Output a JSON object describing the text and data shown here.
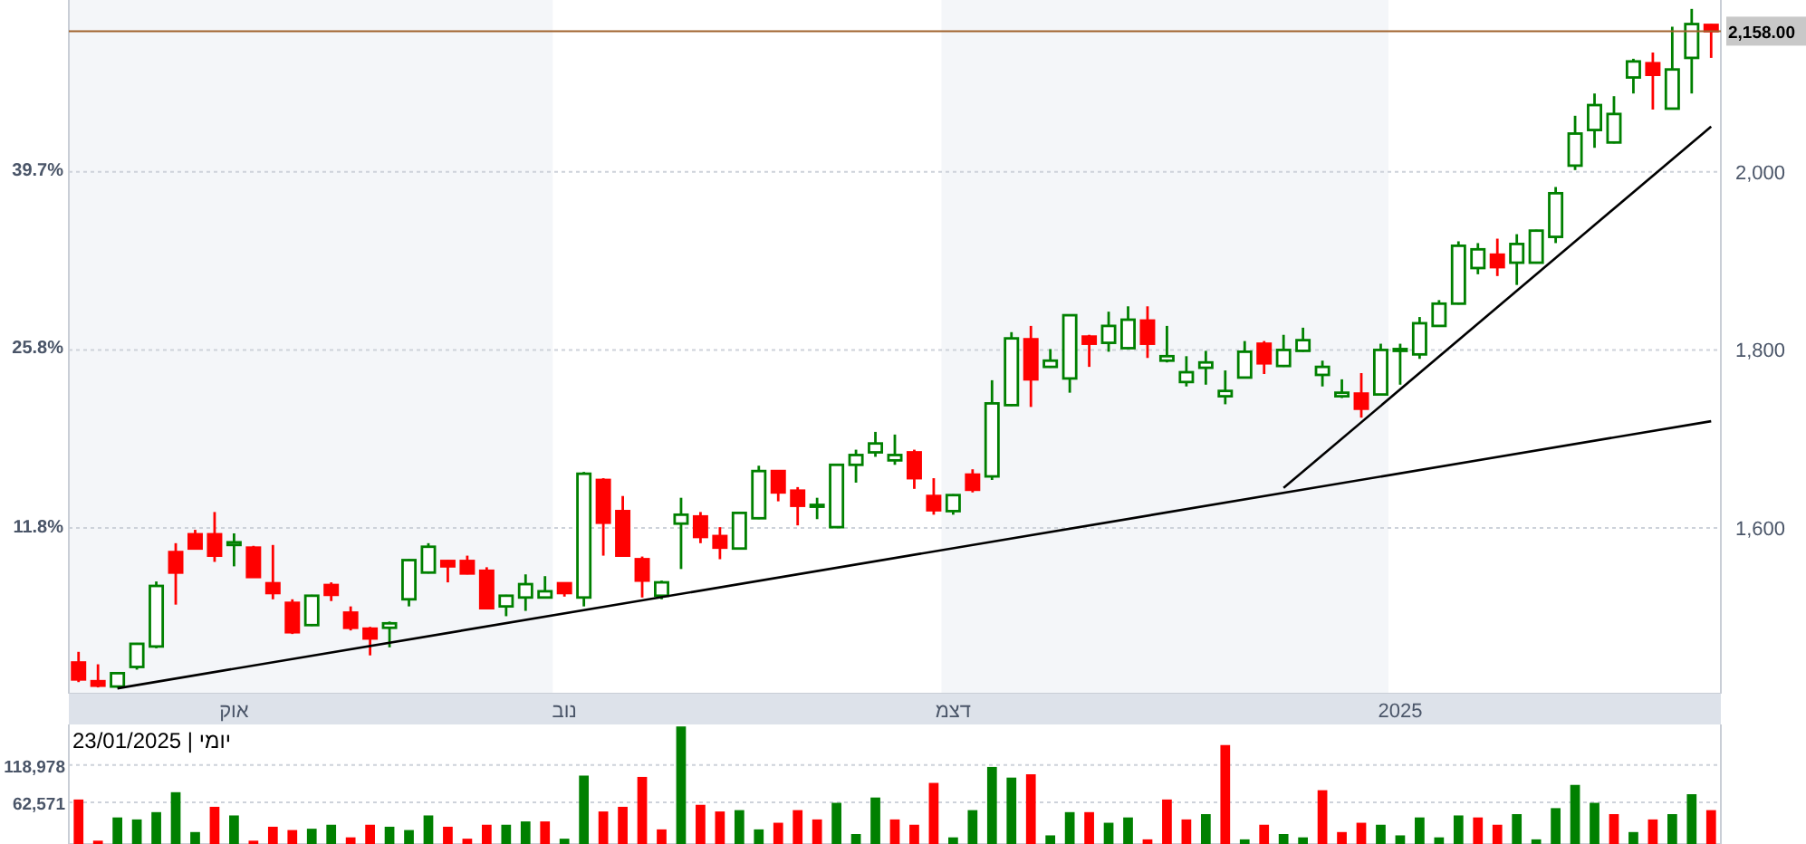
{
  "chart_data": [
    {
      "type": "candlestick",
      "categories": [
        null,
        null,
        null,
        null,
        null,
        null,
        null,
        null,
        "אוק",
        null,
        null,
        null,
        null,
        null,
        null,
        null,
        null,
        null,
        null,
        null,
        null,
        null,
        null,
        null,
        null,
        "נוב",
        null,
        null,
        null,
        null,
        null,
        null,
        null,
        null,
        null,
        null,
        null,
        null,
        null,
        null,
        null,
        null,
        null,
        null,
        null,
        "דצמ",
        null,
        null,
        null,
        null,
        null,
        null,
        null,
        null,
        null,
        null,
        null,
        null,
        null,
        null,
        null,
        null,
        null,
        null,
        null,
        null,
        null,
        null,
        "2025",
        null,
        null,
        null,
        null,
        null,
        null,
        null,
        null,
        null,
        null,
        null,
        null,
        null,
        null,
        null,
        null
      ],
      "ohlc": [
        [
          1449,
          1461,
          1427,
          1430
        ],
        [
          1428,
          1447,
          1421,
          1423
        ],
        [
          1422,
          1438,
          1421,
          1437
        ],
        [
          1444,
          1471,
          1441,
          1470
        ],
        [
          1467,
          1540,
          1465,
          1535
        ],
        [
          1573,
          1583,
          1514,
          1550
        ],
        [
          1593,
          1598,
          1576,
          1577
        ],
        [
          1593,
          1618,
          1562,
          1569
        ],
        [
          1581,
          1594,
          1557,
          1584
        ],
        [
          1578,
          1580,
          1545,
          1545
        ],
        [
          1538,
          1581,
          1520,
          1527
        ],
        [
          1516,
          1520,
          1481,
          1483
        ],
        [
          1491,
          1525,
          1490,
          1524
        ],
        [
          1536,
          1539,
          1518,
          1525
        ],
        [
          1505,
          1512,
          1485,
          1488
        ],
        [
          1487,
          1489,
          1457,
          1476
        ],
        [
          1488,
          1495,
          1466,
          1493
        ],
        [
          1520,
          1565,
          1512,
          1564
        ],
        [
          1550,
          1583,
          1549,
          1579
        ],
        [
          1563,
          1564,
          1539,
          1557
        ],
        [
          1563,
          1569,
          1548,
          1549
        ],
        [
          1552,
          1556,
          1510,
          1510
        ],
        [
          1512,
          1525,
          1501,
          1524
        ],
        [
          1522,
          1548,
          1507,
          1537
        ],
        [
          1522,
          1546,
          1521,
          1529
        ],
        [
          1538,
          1539,
          1523,
          1527
        ],
        [
          1522,
          1663,
          1512,
          1661
        ],
        [
          1654,
          1656,
          1569,
          1606
        ],
        [
          1619,
          1636,
          1569,
          1569
        ],
        [
          1565,
          1568,
          1522,
          1541
        ],
        [
          1524,
          1541,
          1520,
          1539
        ],
        [
          1605,
          1634,
          1554,
          1615
        ],
        [
          1613,
          1618,
          1583,
          1590
        ],
        [
          1591,
          1601,
          1565,
          1578
        ],
        [
          1577,
          1617,
          1576,
          1617
        ],
        [
          1611,
          1670,
          1610,
          1664
        ],
        [
          1664,
          1665,
          1630,
          1640
        ],
        [
          1642,
          1646,
          1603,
          1625
        ],
        [
          1624,
          1634,
          1610,
          1626
        ],
        [
          1601,
          1672,
          1600,
          1671
        ],
        [
          1671,
          1688,
          1651,
          1682
        ],
        [
          1685,
          1708,
          1680,
          1695
        ],
        [
          1676,
          1705,
          1671,
          1682
        ],
        [
          1685,
          1688,
          1644,
          1656
        ],
        [
          1636,
          1656,
          1615,
          1620
        ],
        [
          1619,
          1638,
          1615,
          1637
        ],
        [
          1660,
          1666,
          1640,
          1643
        ],
        [
          1658,
          1766,
          1654,
          1740
        ],
        [
          1738,
          1820,
          1737,
          1813
        ],
        [
          1812,
          1827,
          1736,
          1767
        ],
        [
          1781,
          1801,
          1780,
          1788
        ],
        [
          1768,
          1840,
          1752,
          1839
        ],
        [
          1815,
          1817,
          1781,
          1807
        ],
        [
          1808,
          1843,
          1798,
          1827
        ],
        [
          1802,
          1849,
          1801,
          1834
        ],
        [
          1833,
          1849,
          1791,
          1807
        ],
        [
          1788,
          1827,
          1786,
          1793
        ],
        [
          1764,
          1793,
          1759,
          1775
        ],
        [
          1780,
          1799,
          1761,
          1786
        ],
        [
          1748,
          1777,
          1739,
          1754
        ],
        [
          1769,
          1810,
          1768,
          1798
        ],
        [
          1807,
          1810,
          1773,
          1785
        ],
        [
          1782,
          1817,
          1781,
          1800
        ],
        [
          1799,
          1825,
          1798,
          1811
        ],
        [
          1772,
          1788,
          1759,
          1781
        ],
        [
          1748,
          1767,
          1746,
          1752
        ],
        [
          1751,
          1774,
          1724,
          1734
        ],
        [
          1750,
          1807,
          1749,
          1800
        ],
        [
          1799,
          1807,
          1761,
          1801
        ],
        [
          1795,
          1837,
          1790,
          1830
        ],
        [
          1827,
          1856,
          1826,
          1852
        ],
        [
          1852,
          1922,
          1851,
          1917
        ],
        [
          1892,
          1920,
          1885,
          1913
        ],
        [
          1907,
          1925,
          1883,
          1893
        ],
        [
          1898,
          1930,
          1873,
          1919
        ],
        [
          1898,
          1935,
          1897,
          1934
        ],
        [
          1927,
          1983,
          1920,
          1976
        ],
        [
          2007,
          2063,
          2002,
          2043
        ],
        [
          2047,
          2088,
          2027,
          2075
        ],
        [
          2033,
          2085,
          2032,
          2065
        ],
        [
          2106,
          2127,
          2088,
          2124
        ],
        [
          2122,
          2134,
          2070,
          2109
        ],
        [
          2071,
          2163,
          2070,
          2115
        ],
        [
          2128,
          2183,
          2088,
          2166
        ],
        [
          2165,
          2166,
          2128,
          2158
        ]
      ],
      "colors": [
        "#ff0000",
        "#ff0000",
        "#008000",
        "#008000",
        "#008000",
        "#ff0000",
        "#ff0000",
        "#ff0000",
        "#008000",
        "#ff0000",
        "#ff0000",
        "#ff0000",
        "#008000",
        "#ff0000",
        "#ff0000",
        "#ff0000",
        "#008000",
        "#008000",
        "#008000",
        "#ff0000",
        "#ff0000",
        "#ff0000",
        "#008000",
        "#008000",
        "#008000",
        "#ff0000",
        "#008000",
        "#ff0000",
        "#ff0000",
        "#ff0000",
        "#008000",
        "#008000",
        "#ff0000",
        "#ff0000",
        "#008000",
        "#008000",
        "#ff0000",
        "#ff0000",
        "#008000",
        "#008000",
        "#008000",
        "#008000",
        "#008000",
        "#ff0000",
        "#ff0000",
        "#008000",
        "#ff0000",
        "#008000",
        "#008000",
        "#ff0000",
        "#008000",
        "#008000",
        "#ff0000",
        "#008000",
        "#008000",
        "#ff0000",
        "#008000",
        "#008000",
        "#008000",
        "#008000",
        "#008000",
        "#ff0000",
        "#008000",
        "#008000",
        "#008000",
        "#008000",
        "#ff0000",
        "#008000",
        "#008000",
        "#008000",
        "#008000",
        "#008000",
        "#008000",
        "#ff0000",
        "#008000",
        "#008000",
        "#008000",
        "#008000",
        "#008000",
        "#008000",
        "#008000",
        "#ff0000",
        "#008000",
        "#008000",
        "#ff0000"
      ],
      "series": [
        {
          "type": "line",
          "color": "#000000",
          "values": [
            null,
            null,
            1420,
            null,
            null,
            null,
            null,
            null,
            null,
            null,
            null,
            null,
            null,
            null,
            null,
            null,
            null,
            null,
            null,
            null,
            null,
            null,
            null,
            null,
            null,
            null,
            null,
            null,
            null,
            null,
            null,
            null,
            null,
            null,
            null,
            null,
            null,
            null,
            null,
            null,
            null,
            null,
            null,
            null,
            null,
            null,
            null,
            null,
            null,
            null,
            null,
            null,
            null,
            null,
            null,
            null,
            null,
            null,
            null,
            null,
            null,
            null,
            null,
            null,
            null,
            null,
            null,
            null,
            null,
            null,
            null,
            null,
            null,
            null,
            null,
            null,
            null,
            null,
            null,
            null,
            null,
            null,
            null,
            null,
            1720
          ]
        },
        {
          "type": "line",
          "color": "#000000",
          "values": [
            null,
            null,
            null,
            null,
            null,
            null,
            null,
            null,
            null,
            null,
            null,
            null,
            null,
            null,
            null,
            null,
            null,
            null,
            null,
            null,
            null,
            null,
            null,
            null,
            null,
            null,
            null,
            null,
            null,
            null,
            null,
            null,
            null,
            null,
            null,
            null,
            null,
            null,
            null,
            null,
            null,
            null,
            null,
            null,
            null,
            null,
            null,
            null,
            null,
            null,
            null,
            null,
            null,
            null,
            null,
            null,
            null,
            null,
            null,
            null,
            null,
            null,
            1645,
            null,
            null,
            null,
            null,
            null,
            null,
            null,
            null,
            null,
            null,
            null,
            null,
            null,
            null,
            null,
            null,
            null,
            null,
            null,
            null,
            null,
            2051
          ]
        }
      ],
      "ylim": [
        1414,
        2193
      ],
      "yticks": [
        {
          "value": 1600,
          "label": "1,600"
        },
        {
          "value": 1800,
          "label": "1,800"
        },
        {
          "value": 2000,
          "label": "2,000"
        }
      ],
      "y2lim": [
        -1.4,
        52.9
      ],
      "y2ticks": [
        {
          "value": 11.8,
          "label": "11.8%"
        },
        {
          "value": 25.8,
          "label": "25.8%"
        },
        {
          "value": 39.7,
          "label": "39.7%"
        }
      ],
      "grid": "y",
      "ref_lines": [
        {
          "axis": "y",
          "value": 2158,
          "label": "2,158.00",
          "color": "#a0622d"
        }
      ]
    },
    {
      "type": "bar",
      "categories": [
        null,
        null,
        null,
        null,
        null,
        null,
        null,
        null,
        null,
        null,
        null,
        null,
        null,
        null,
        null,
        null,
        null,
        null,
        null,
        null,
        null,
        null,
        null,
        null,
        null,
        null,
        null,
        null,
        null,
        null,
        null,
        null,
        null,
        null,
        null,
        null,
        null,
        null,
        null,
        null,
        null,
        null,
        null,
        null,
        null,
        null,
        null,
        null,
        null,
        null,
        null,
        null,
        null,
        null,
        null,
        null,
        null,
        null,
        null,
        null,
        null,
        null,
        null,
        null,
        null,
        null,
        null,
        null,
        null,
        null,
        null,
        null,
        null,
        null,
        null,
        null,
        null,
        null,
        null,
        null,
        null,
        null,
        null,
        null,
        null
      ],
      "values": [
        67000,
        5000,
        40000,
        37000,
        48000,
        78000,
        18000,
        56000,
        43000,
        5000,
        26000,
        21000,
        23000,
        29000,
        10000,
        29000,
        26000,
        21000,
        43000,
        26000,
        8000,
        29000,
        29000,
        34000,
        34000,
        8000,
        103000,
        49000,
        56000,
        101000,
        22000,
        177000,
        59000,
        49000,
        51000,
        22000,
        32000,
        51000,
        37000,
        62000,
        15000,
        70000,
        37000,
        29000,
        92000,
        10000,
        51000,
        116000,
        100000,
        105000,
        13000,
        48000,
        48000,
        32000,
        40000,
        7000,
        67000,
        37000,
        45000,
        149000,
        7000,
        29000,
        15000,
        10000,
        81000,
        18000,
        32000,
        29000,
        13000,
        40000,
        10000,
        43000,
        40000,
        29000,
        45000,
        7000,
        54000,
        89000,
        62000,
        45000,
        18000,
        37000,
        45000,
        75000,
        51000
      ],
      "colors": [
        "#ff0000",
        "#ff0000",
        "#008000",
        "#008000",
        "#008000",
        "#008000",
        "#008000",
        "#ff0000",
        "#008000",
        "#ff0000",
        "#ff0000",
        "#ff0000",
        "#008000",
        "#008000",
        "#ff0000",
        "#ff0000",
        "#008000",
        "#008000",
        "#008000",
        "#ff0000",
        "#ff0000",
        "#ff0000",
        "#008000",
        "#008000",
        "#ff0000",
        "#008000",
        "#008000",
        "#ff0000",
        "#ff0000",
        "#ff0000",
        "#ff0000",
        "#008000",
        "#ff0000",
        "#ff0000",
        "#008000",
        "#008000",
        "#ff0000",
        "#ff0000",
        "#ff0000",
        "#008000",
        "#008000",
        "#008000",
        "#ff0000",
        "#ff0000",
        "#ff0000",
        "#008000",
        "#008000",
        "#008000",
        "#008000",
        "#ff0000",
        "#008000",
        "#008000",
        "#ff0000",
        "#008000",
        "#008000",
        "#ff0000",
        "#ff0000",
        "#ff0000",
        "#008000",
        "#ff0000",
        "#008000",
        "#ff0000",
        "#008000",
        "#008000",
        "#ff0000",
        "#ff0000",
        "#ff0000",
        "#008000",
        "#008000",
        "#008000",
        "#008000",
        "#008000",
        "#ff0000",
        "#ff0000",
        "#008000",
        "#008000",
        "#008000",
        "#008000",
        "#008000",
        "#ff0000",
        "#008000",
        "#ff0000",
        "#008000",
        "#008000",
        "#ff0000"
      ],
      "ylim": [
        0,
        180000
      ],
      "yticks": [
        {
          "value": 62571,
          "label": "62,571"
        },
        {
          "value": 118978,
          "label": "118,978"
        }
      ],
      "grid": "y",
      "tick_labels": "y",
      "annotations": [
        "יומי | 23/01/2025"
      ]
    }
  ]
}
